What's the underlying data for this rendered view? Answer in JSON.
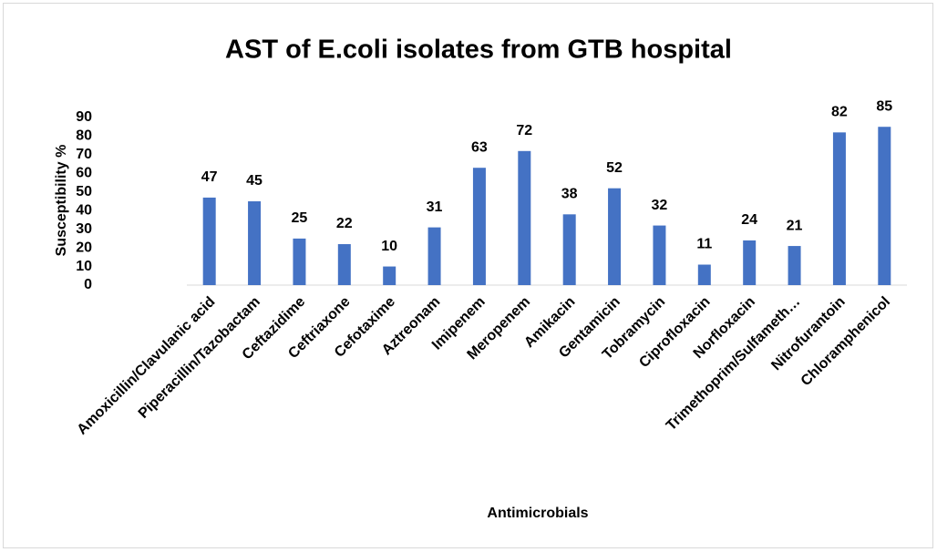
{
  "chart_data": {
    "type": "bar",
    "title": "AST of E.coli isolates from GTB hospital",
    "x_label": "Antimicrobials",
    "y_label": "Susceptibility %",
    "categories": [
      "Amoxicillin/Clavulanic acid",
      "Piperacillin/Tazobactam",
      "Ceftazidime",
      "Ceftriaxone",
      "Cefotaxime",
      "Aztreonam",
      "Imipenem",
      "Meropenem",
      "Amikacin",
      "Gentamicin",
      "Tobramycin",
      "Ciprofloxacin",
      "Norfloxacin",
      "Trimethoprim/Sulfameth…",
      "Nitrofurantoin",
      "Chloramphenicol"
    ],
    "values": [
      47,
      45,
      25,
      22,
      10,
      31,
      63,
      72,
      38,
      52,
      32,
      11,
      24,
      21,
      82,
      85
    ],
    "color": "#4472c4",
    "ylim": [
      0,
      90
    ],
    "yticks": [
      0,
      10,
      20,
      30,
      40,
      50,
      60,
      70,
      80,
      90
    ],
    "grid": false
  }
}
